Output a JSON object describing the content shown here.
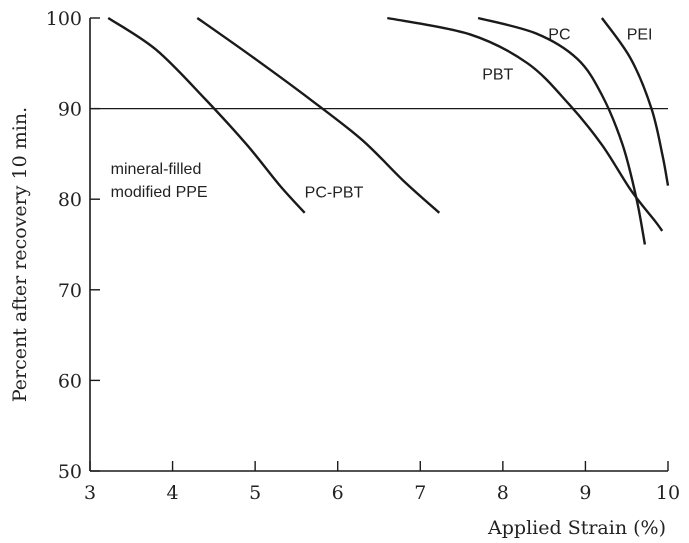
{
  "chart_data": {
    "type": "line",
    "xlabel": "Applied Strain (%)",
    "ylabel": "Percent after recovery 10 min.",
    "xlim": [
      3,
      10
    ],
    "ylim": [
      50,
      100
    ],
    "x_ticks": [
      3,
      4,
      5,
      6,
      7,
      8,
      9,
      10
    ],
    "y_ticks": [
      50,
      60,
      70,
      80,
      90,
      100
    ],
    "reference_line": {
      "y": 90
    },
    "grid": false,
    "series": [
      {
        "name": "mineral-filled modified PPE",
        "label_lines": [
          "mineral-filled",
          "modified PPE"
        ],
        "points": [
          [
            3.22,
            100
          ],
          [
            3.8,
            96.5
          ],
          [
            4.4,
            91
          ],
          [
            4.9,
            86
          ],
          [
            5.3,
            81.5
          ],
          [
            5.6,
            78.5
          ]
        ]
      },
      {
        "name": "PC-PBT",
        "label_lines": [
          "PC-PBT"
        ],
        "points": [
          [
            4.3,
            100
          ],
          [
            5.0,
            95.5
          ],
          [
            5.7,
            90.8
          ],
          [
            6.3,
            86.5
          ],
          [
            6.8,
            82
          ],
          [
            7.23,
            78.5
          ]
        ]
      },
      {
        "name": "PBT",
        "label_lines": [
          "PBT"
        ],
        "points": [
          [
            6.6,
            100
          ],
          [
            7.6,
            98.2
          ],
          [
            8.3,
            95
          ],
          [
            8.8,
            90.5
          ],
          [
            9.2,
            86
          ],
          [
            9.55,
            81
          ],
          [
            9.85,
            77.5
          ],
          [
            9.93,
            76.5
          ]
        ]
      },
      {
        "name": "PC",
        "label_lines": [
          "PC"
        ],
        "points": [
          [
            7.7,
            100
          ],
          [
            8.4,
            98.3
          ],
          [
            8.9,
            95.5
          ],
          [
            9.2,
            91.5
          ],
          [
            9.45,
            86
          ],
          [
            9.62,
            80
          ],
          [
            9.72,
            75
          ]
        ]
      },
      {
        "name": "PEI",
        "label_lines": [
          "PEI"
        ],
        "points": [
          [
            9.2,
            100
          ],
          [
            9.55,
            95.5
          ],
          [
            9.8,
            90
          ],
          [
            9.93,
            85
          ],
          [
            10.0,
            81.5
          ]
        ]
      }
    ]
  }
}
